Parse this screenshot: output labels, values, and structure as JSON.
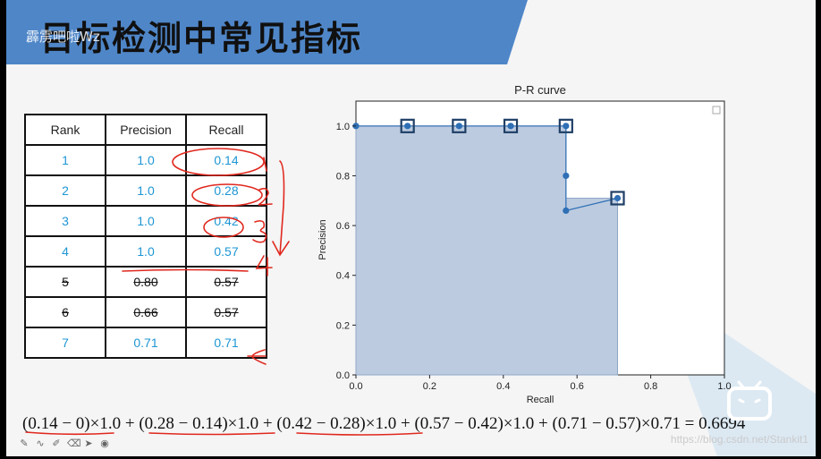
{
  "slide": {
    "title": "目标检测中常见指标",
    "watermark_top": "霹雳吧啦Wz",
    "watermark_bottom": "https://blog.csdn.net/Stankit1"
  },
  "table": {
    "headers": [
      "Rank",
      "Precision",
      "Recall"
    ],
    "rows": [
      {
        "rank": "1",
        "precision": "1.0",
        "recall": "0.14",
        "struck": false
      },
      {
        "rank": "2",
        "precision": "1.0",
        "recall": "0.28",
        "struck": false
      },
      {
        "rank": "3",
        "precision": "1.0",
        "recall": "0.42",
        "struck": false
      },
      {
        "rank": "4",
        "precision": "1.0",
        "recall": "0.57",
        "struck": false
      },
      {
        "rank": "5",
        "precision": "0.80",
        "recall": "0.57",
        "struck": true
      },
      {
        "rank": "6",
        "precision": "0.66",
        "recall": "0.57",
        "struck": true
      },
      {
        "rank": "7",
        "precision": "0.71",
        "recall": "0.71",
        "struck": false
      }
    ]
  },
  "formula": {
    "t1": "(0.14 − 0)×1.0",
    "t2": "(0.28 − 0.14)×1.0",
    "t3": "(0.42 − 0.28)×1.0",
    "t4": "(0.57 − 0.42)×1.0",
    "t5": "(0.71 − 0.57)×0.71",
    "plus": "+",
    "eq": "=",
    "result": "0.6694"
  },
  "colors": {
    "title_band": "#4f86c8",
    "table_blue": "#1d96d4",
    "ink_red": "#e0281e",
    "area_fill": "#b8c8de",
    "curve": "#2e6fb5"
  },
  "chart_data": {
    "type": "area",
    "title": "P-R curve",
    "xlabel": "Recall",
    "ylabel": "Precision",
    "xlim": [
      0.0,
      1.0
    ],
    "ylim": [
      0.0,
      1.1
    ],
    "xticks": [
      "0.0",
      "0.2",
      "0.4",
      "0.6",
      "0.8",
      "1.0"
    ],
    "yticks": [
      "0.0",
      "0.2",
      "0.4",
      "0.6",
      "0.8",
      "1.0"
    ],
    "points": [
      {
        "x": 0.0,
        "y": 1.0
      },
      {
        "x": 0.14,
        "y": 1.0
      },
      {
        "x": 0.28,
        "y": 1.0
      },
      {
        "x": 0.42,
        "y": 1.0
      },
      {
        "x": 0.57,
        "y": 1.0
      },
      {
        "x": 0.57,
        "y": 0.8
      },
      {
        "x": 0.57,
        "y": 0.66
      },
      {
        "x": 0.71,
        "y": 0.71
      }
    ],
    "highlighted": [
      {
        "x": 0.14,
        "y": 1.0
      },
      {
        "x": 0.28,
        "y": 1.0
      },
      {
        "x": 0.42,
        "y": 1.0
      },
      {
        "x": 0.57,
        "y": 1.0
      },
      {
        "x": 0.71,
        "y": 0.71
      }
    ],
    "interpolated_area": [
      {
        "x": 0.0,
        "y": 1.0
      },
      {
        "x": 0.57,
        "y": 1.0
      },
      {
        "x": 0.57,
        "y": 0.71
      },
      {
        "x": 0.71,
        "y": 0.71
      }
    ],
    "grid": false,
    "legend": "top-right"
  }
}
